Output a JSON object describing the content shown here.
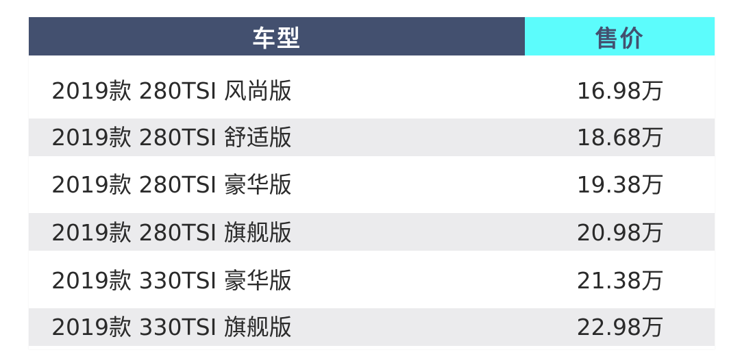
{
  "table": {
    "headers": {
      "model": "车型",
      "price": "售价"
    },
    "colors": {
      "header_model_bg": "#43506f",
      "header_price_bg": "#5cfcfc",
      "stripe": "#ebebed"
    },
    "rows": [
      {
        "model": "2019款 280TSI 风尚版",
        "price": "16.98万"
      },
      {
        "model": "2019款 280TSI 舒适版",
        "price": "18.68万"
      },
      {
        "model": "2019款 280TSI 豪华版",
        "price": "19.38万"
      },
      {
        "model": "2019款 280TSI 旗舰版",
        "price": "20.98万"
      },
      {
        "model": "2019款 330TSI 豪华版",
        "price": "21.38万"
      },
      {
        "model": "2019款 330TSI 旗舰版",
        "price": "22.98万"
      }
    ]
  }
}
